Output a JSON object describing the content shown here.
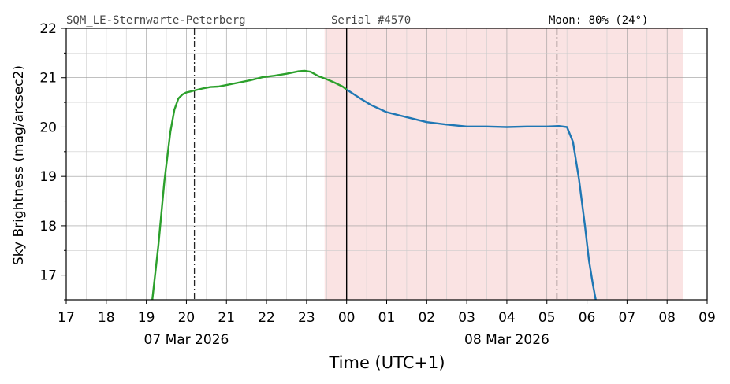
{
  "header": {
    "station": "SQM_LE-Sternwarte-Peterberg",
    "serial": "Serial #4570",
    "moon": "Moon: 80% (24°)"
  },
  "chart_data": {
    "type": "line",
    "xlabel": "Time (UTC+1)",
    "ylabel": "Sky Brightness (mag/arcsec2)",
    "xlim": [
      17,
      33
    ],
    "ylim": [
      16.5,
      22
    ],
    "x_ticks": [
      {
        "x": 17,
        "label": "17"
      },
      {
        "x": 18,
        "label": "18"
      },
      {
        "x": 19,
        "label": "19"
      },
      {
        "x": 20,
        "label": "20"
      },
      {
        "x": 21,
        "label": "21"
      },
      {
        "x": 22,
        "label": "22"
      },
      {
        "x": 23,
        "label": "23"
      },
      {
        "x": 24,
        "label": "00"
      },
      {
        "x": 25,
        "label": "01"
      },
      {
        "x": 26,
        "label": "02"
      },
      {
        "x": 27,
        "label": "03"
      },
      {
        "x": 28,
        "label": "04"
      },
      {
        "x": 29,
        "label": "05"
      },
      {
        "x": 30,
        "label": "06"
      },
      {
        "x": 31,
        "label": "07"
      },
      {
        "x": 32,
        "label": "08"
      },
      {
        "x": 33,
        "label": "09"
      }
    ],
    "date_labels": [
      {
        "x": 20,
        "label": "07 Mar 2026"
      },
      {
        "x": 28,
        "label": "08 Mar 2026"
      }
    ],
    "y_ticks": [
      17,
      18,
      19,
      20,
      21,
      22
    ],
    "y_minor_ticks": [
      16.5,
      17.5,
      18.5,
      19.5,
      20.5,
      21.5
    ],
    "grid": true,
    "shaded_region": {
      "x_start": 23.45,
      "x_end": 32.4,
      "color": "#fae3e3"
    },
    "midnight_line": {
      "x": 24,
      "color": "#000000"
    },
    "dashdot_lines": [
      20.2,
      29.25
    ],
    "series": [
      {
        "color": "#2ca02c",
        "x": [
          19.15,
          19.3,
          19.45,
          19.6,
          19.7,
          19.8,
          19.9,
          20.0,
          20.1,
          20.2,
          20.4,
          20.6,
          20.8,
          21.0,
          21.3,
          21.6,
          21.9,
          22.2,
          22.5,
          22.8,
          22.95,
          23.1,
          23.3,
          23.5,
          23.7,
          23.9,
          24.0
        ],
        "values": [
          16.5,
          17.6,
          18.9,
          19.9,
          20.35,
          20.58,
          20.66,
          20.7,
          20.72,
          20.74,
          20.78,
          20.81,
          20.82,
          20.85,
          20.9,
          20.95,
          21.01,
          21.04,
          21.08,
          21.13,
          21.14,
          21.12,
          21.03,
          20.97,
          20.9,
          20.82,
          20.76
        ]
      },
      {
        "color": "#1f77b4",
        "x": [
          24.0,
          24.3,
          24.6,
          25.0,
          25.5,
          26.0,
          26.5,
          27.0,
          27.5,
          28.0,
          28.5,
          29.0,
          29.3,
          29.5,
          29.65,
          29.8,
          29.95,
          30.05,
          30.15,
          30.22
        ],
        "values": [
          20.76,
          20.6,
          20.45,
          20.3,
          20.2,
          20.1,
          20.05,
          20.01,
          20.01,
          20.0,
          20.01,
          20.01,
          20.02,
          20.0,
          19.7,
          18.95,
          18.0,
          17.3,
          16.8,
          16.5
        ]
      }
    ]
  }
}
